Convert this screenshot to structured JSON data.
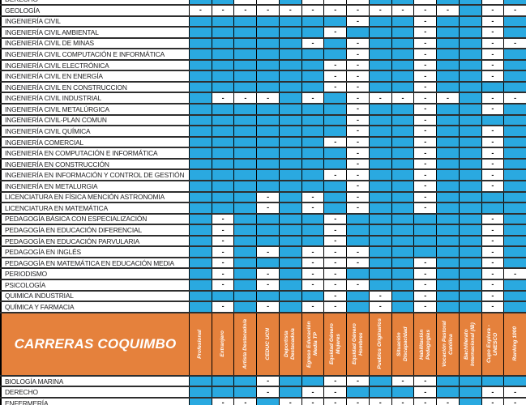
{
  "palette": {
    "available_blue": "#2AA9E0",
    "section_orange": "#E5813C",
    "grid_black": "#000000",
    "row_line": "#2e2e2e",
    "header_text": "#FFFFFF",
    "label_text": "#1d1d1f"
  },
  "dash_symbol": "-",
  "columns": [
    "Profesional",
    "Extranjero",
    "Artista Destacado/a",
    "CEDUC UCN",
    "Deportista Destacado/a",
    "Egreso Educación Media TP",
    "Equidad Género Mujeres",
    "Equidad Género Hombres",
    "Pueblos Originarios",
    "Situación Discapacidad",
    "Habilitación Pedagogías",
    "Vocación Pastoral Católica",
    "Bachillerato Internacional (IB)",
    "Cupo Explora - UNESCO",
    "Ranking 1000"
  ],
  "top_section": {
    "rows": [
      {
        "label": "DERECHO",
        "cells": [
          "B",
          "B",
          "-",
          "-",
          "B",
          "-",
          "-",
          "-",
          "B",
          "B",
          "-",
          "B",
          "B",
          "-",
          "B"
        ],
        "clipped": true
      },
      {
        "label": "GEOLOGÍA",
        "cells": [
          "-",
          "-",
          "-",
          "-",
          "-",
          "-",
          "-",
          "-",
          "-",
          "-",
          "-",
          "-",
          "B",
          "-",
          "-"
        ]
      },
      {
        "label": "INGENIERÍA CIVIL",
        "cells": [
          "B",
          "B",
          "B",
          "B",
          "B",
          "B",
          "B",
          "-",
          "B",
          "B",
          "-",
          "B",
          "B",
          "-",
          "B"
        ]
      },
      {
        "label": "INGENIERÍA CIVIL AMBIENTAL",
        "cells": [
          "B",
          "B",
          "B",
          "B",
          "B",
          "B",
          "-",
          "B",
          "B",
          "B",
          "-",
          "B",
          "B",
          "-",
          "B"
        ]
      },
      {
        "label": "INGENIERÍA CIVIL DE MINAS",
        "cells": [
          "B",
          "B",
          "B",
          "B",
          "B",
          "-",
          "B",
          "-",
          "B",
          "B",
          "-",
          "B",
          "B",
          "-",
          "-"
        ]
      },
      {
        "label": "INGENIERÍA CIVIL COMPUTACIÓN E INFORMÁTICA",
        "cells": [
          "B",
          "B",
          "B",
          "B",
          "B",
          "B",
          "B",
          "-",
          "B",
          "B",
          "-",
          "B",
          "B",
          "-",
          "B"
        ]
      },
      {
        "label": "INGENIERÍA CIVIL ELECTRÓNICA",
        "cells": [
          "B",
          "B",
          "B",
          "B",
          "B",
          "B",
          "-",
          "-",
          "B",
          "B",
          "-",
          "B",
          "B",
          "-",
          "B"
        ]
      },
      {
        "label": "INGENIERÍA CIVIL EN ENERGÍA",
        "cells": [
          "B",
          "B",
          "B",
          "B",
          "B",
          "B",
          "-",
          "-",
          "B",
          "B",
          "-",
          "B",
          "B",
          "-",
          "B"
        ]
      },
      {
        "label": "INGENIERÍA CIVIL EN  CONSTRUCCION",
        "cells": [
          "B",
          "B",
          "B",
          "B",
          "B",
          "B",
          "-",
          "-",
          "B",
          "B",
          "-",
          "B",
          "B",
          "B",
          "B"
        ]
      },
      {
        "label": "INGENIERÍA CIVIL INDUSTRIAL",
        "cells": [
          "B",
          "-",
          "-",
          "-",
          "B",
          "-",
          "B",
          "-",
          "-",
          "-",
          "-",
          "-",
          "B",
          "-",
          "-"
        ]
      },
      {
        "label": "INGENIERÍA CIVIL METALÚRGICA",
        "cells": [
          "B",
          "B",
          "B",
          "B",
          "B",
          "B",
          "B",
          "-",
          "B",
          "B",
          "-",
          "B",
          "B",
          "-",
          "B"
        ]
      },
      {
        "label": "INGENIERÍA CIVIL-PLAN COMUN",
        "cells": [
          "B",
          "B",
          "B",
          "B",
          "B",
          "B",
          "B",
          "-",
          "B",
          "B",
          "-",
          "B",
          "B",
          "B",
          "B"
        ]
      },
      {
        "label": "INGENIERÍA CIVIL QUÍMICA",
        "cells": [
          "B",
          "B",
          "B",
          "B",
          "B",
          "B",
          "B",
          "-",
          "B",
          "B",
          "-",
          "B",
          "B",
          "-",
          "B"
        ]
      },
      {
        "label": "INGENIERÍA COMERCIAL",
        "cells": [
          "B",
          "B",
          "B",
          "B",
          "B",
          "B",
          "-",
          "-",
          "B",
          "B",
          "-",
          "B",
          "B",
          "-",
          "B"
        ]
      },
      {
        "label": "INGENIERÍA EN COMPUTACIÓN E INFORMÁTICA",
        "cells": [
          "B",
          "B",
          "B",
          "B",
          "B",
          "B",
          "B",
          "-",
          "B",
          "B",
          "-",
          "B",
          "B",
          "-",
          "B"
        ]
      },
      {
        "label": "INGENIERÍA EN CONSTRUCCIÓN",
        "cells": [
          "B",
          "B",
          "B",
          "B",
          "B",
          "B",
          "B",
          "-",
          "B",
          "B",
          "-",
          "B",
          "B",
          "-",
          "B"
        ]
      },
      {
        "label": "INGENIERÍA EN INFORMACIÓN Y CONTROL DE GESTIÓN",
        "cells": [
          "B",
          "B",
          "B",
          "B",
          "B",
          "B",
          "-",
          "-",
          "B",
          "B",
          "-",
          "B",
          "B",
          "-",
          "B"
        ]
      },
      {
        "label": "INGENIERÍA EN METALURGIA",
        "cells": [
          "B",
          "B",
          "B",
          "B",
          "B",
          "B",
          "B",
          "-",
          "B",
          "B",
          "-",
          "B",
          "B",
          "-",
          "B"
        ]
      },
      {
        "label": "LICENCIATURA EN FÍSICA MENCIÓN ASTRONOMIA",
        "cells": [
          "B",
          "B",
          "B",
          "-",
          "B",
          "-",
          "B",
          "-",
          "B",
          "B",
          "-",
          "B",
          "B",
          "B",
          "B"
        ]
      },
      {
        "label": "LICENCIATURA EN MATEMÁTICA",
        "cells": [
          "B",
          "B",
          "B",
          "-",
          "B",
          "-",
          "B",
          "-",
          "B",
          "B",
          "-",
          "B",
          "B",
          "B",
          "B"
        ]
      },
      {
        "label": "PEDAGOGÍA BÁSICA CON ESPECIALIZACIÓN",
        "cells": [
          "B",
          "-",
          "B",
          "B",
          "B",
          "B",
          "-",
          "B",
          "B",
          "B",
          "B",
          "B",
          "B",
          "-",
          "B"
        ]
      },
      {
        "label": "PEDAGOGÍA EN EDUCACIÓN DIFERENCIAL",
        "cells": [
          "B",
          "-",
          "B",
          "B",
          "B",
          "B",
          "-",
          "B",
          "B",
          "B",
          "B",
          "B",
          "B",
          "-",
          "B"
        ]
      },
      {
        "label": "PEDAGOGÍA EN EDUCACIÓN PARVULARIA",
        "cells": [
          "B",
          "-",
          "B",
          "B",
          "B",
          "B",
          "-",
          "B",
          "B",
          "B",
          "B",
          "B",
          "B",
          "-",
          "B"
        ]
      },
      {
        "label": "PEDAGOGÍA EN INGLÉS",
        "cells": [
          "B",
          "-",
          "B",
          "-",
          "B",
          "-",
          "-",
          "-",
          "B",
          "B",
          "B",
          "B",
          "B",
          "-",
          "B"
        ]
      },
      {
        "label": "PEDAGOGÍA EN MATEMÁTICA EN EDUCACIÓN MEDIA",
        "cells": [
          "B",
          "-",
          "B",
          "B",
          "B",
          "-",
          "-",
          "-",
          "B",
          "B",
          "-",
          "B",
          "B",
          "-",
          "B"
        ]
      },
      {
        "label": "PERIODISMO",
        "cells": [
          "B",
          "-",
          "B",
          "-",
          "B",
          "-",
          "-",
          "B",
          "B",
          "B",
          "-",
          "B",
          "B",
          "-",
          "-"
        ]
      },
      {
        "label": "PSICOLOGÍA",
        "cells": [
          "B",
          "-",
          "B",
          "-",
          "B",
          "-",
          "-",
          "-",
          "B",
          "B",
          "-",
          "B",
          "B",
          "-",
          "B"
        ]
      },
      {
        "label": "QUIMICA INDUSTRIAL",
        "cells": [
          "B",
          "B",
          "B",
          "B",
          "B",
          "B",
          "-",
          "B",
          "-",
          "B",
          "-",
          "B",
          "B",
          "-",
          "B"
        ]
      },
      {
        "label": "QUÍMICA Y FARMACIA",
        "cells": [
          "B",
          "-",
          "B",
          "-",
          "B",
          "-",
          "-",
          "B",
          "-",
          "B",
          "-",
          "B",
          "B",
          "-",
          "B"
        ]
      }
    ]
  },
  "coquimbo_header": {
    "title": "CARRERAS COQUIMBO"
  },
  "coquimbo_section": {
    "rows": [
      {
        "label": "BIOLOGÍA MARINA",
        "cells": [
          "B",
          "B",
          "B",
          "-",
          "B",
          "B",
          "-",
          "-",
          "B",
          "-",
          "-",
          "B",
          "B",
          "B",
          "B"
        ]
      },
      {
        "label": "DERECHO",
        "cells": [
          "B",
          "B",
          "B",
          "-",
          "B",
          "-",
          "-",
          "B",
          "B",
          "B",
          "-",
          "B",
          "B",
          "-",
          "-"
        ]
      },
      {
        "label": "ENFERMERÍA",
        "cells": [
          "B",
          "-",
          "-",
          "B",
          "-",
          "-",
          "-",
          "-",
          "-",
          "-",
          "-",
          "-",
          "B",
          "-",
          "-"
        ],
        "clipped": true
      }
    ]
  }
}
